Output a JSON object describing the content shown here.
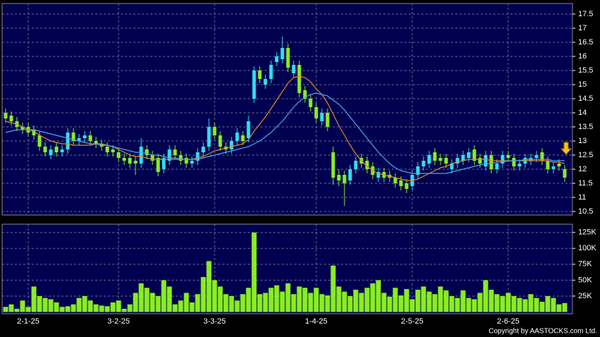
{
  "chart_data": [
    {
      "type": "candlestick",
      "ylim": [
        10.375,
        17.875
      ],
      "yticks": [
        10.5,
        11,
        11.5,
        12,
        12.5,
        13,
        13.5,
        14,
        14.5,
        15,
        15.5,
        16,
        16.5,
        17,
        17.5
      ],
      "grid": true,
      "up_color": "#33ddee",
      "down_color": "#88ee22",
      "open": [
        14.0,
        13.9,
        13.7,
        13.5,
        13.5,
        13.4,
        13.2,
        12.8,
        12.5,
        12.8,
        12.6,
        12.7,
        13.3,
        13.0,
        13.1,
        13.2,
        13.0,
        12.9,
        12.8,
        12.7,
        12.6,
        12.4,
        12.4,
        12.3,
        12.2,
        12.7,
        12.5,
        12.4,
        12.0,
        12.3,
        12.7,
        12.5,
        12.4,
        12.2,
        12.3,
        12.6,
        12.8,
        13.5,
        13.2,
        12.8,
        12.7,
        13.0,
        13.2,
        13.1,
        14.5,
        15.5,
        15.0,
        15.2,
        15.8,
        15.9,
        16.3,
        15.4,
        15.7,
        14.8,
        14.5,
        14.2,
        13.7,
        14.0,
        12.6,
        11.8,
        11.8,
        11.6,
        12.0,
        12.4,
        12.3,
        12.1,
        11.7,
        11.9,
        11.8,
        11.7,
        11.6,
        11.5,
        11.4,
        11.8,
        12.1,
        12.2,
        12.6,
        12.4,
        12.4,
        12.0,
        12.2,
        12.3,
        12.4,
        12.7,
        12.4,
        12.1,
        12.5,
        12.0,
        12.2,
        12.5,
        12.4,
        12.1,
        12.2,
        12.3,
        12.4,
        12.6,
        12.3,
        12.0,
        12.2,
        12.0
      ],
      "high": [
        14.15,
        14.05,
        13.85,
        13.65,
        13.65,
        13.55,
        13.35,
        12.95,
        12.85,
        12.95,
        12.85,
        13.45,
        13.45,
        13.25,
        13.35,
        13.35,
        13.15,
        13.05,
        12.95,
        12.85,
        12.75,
        12.55,
        12.55,
        12.45,
        13.1,
        12.85,
        12.65,
        12.55,
        12.55,
        12.85,
        12.85,
        12.65,
        12.55,
        12.45,
        12.75,
        12.95,
        13.8,
        13.65,
        13.35,
        12.95,
        13.15,
        13.45,
        13.35,
        13.9,
        15.65,
        15.65,
        15.35,
        15.85,
        16.15,
        16.7,
        16.45,
        15.85,
        15.85,
        14.95,
        14.65,
        14.35,
        14.15,
        14.15,
        12.8,
        12.0,
        11.95,
        12.15,
        12.45,
        12.55,
        12.45,
        12.25,
        12.05,
        12.05,
        11.95,
        11.85,
        11.75,
        11.65,
        11.95,
        12.25,
        12.45,
        12.65,
        12.75,
        12.55,
        12.55,
        12.35,
        12.55,
        12.65,
        12.75,
        12.85,
        12.55,
        12.65,
        12.65,
        12.35,
        12.65,
        12.65,
        12.55,
        12.35,
        12.55,
        12.55,
        12.65,
        12.75,
        12.45,
        12.25,
        12.35,
        12.15
      ],
      "low": [
        13.65,
        13.55,
        13.35,
        13.25,
        13.15,
        13.05,
        12.65,
        12.45,
        12.35,
        12.45,
        12.45,
        12.55,
        12.85,
        12.85,
        12.95,
        12.85,
        12.75,
        12.65,
        12.45,
        12.45,
        12.25,
        12.15,
        12.05,
        11.8,
        12.05,
        12.35,
        12.15,
        11.75,
        11.85,
        12.15,
        12.35,
        12.15,
        12.05,
        12.05,
        12.15,
        12.45,
        12.65,
        13.05,
        12.65,
        12.55,
        12.55,
        12.85,
        12.85,
        12.95,
        14.35,
        15.05,
        14.85,
        15.05,
        15.65,
        15.75,
        15.45,
        15.25,
        14.55,
        14.35,
        14.05,
        13.65,
        13.55,
        13.35,
        11.45,
        11.4,
        10.7,
        11.45,
        11.85,
        12.05,
        11.85,
        11.65,
        11.55,
        11.55,
        11.55,
        11.35,
        11.25,
        11.15,
        11.25,
        11.65,
        11.95,
        12.05,
        12.15,
        12.15,
        12.05,
        11.85,
        12.05,
        12.15,
        12.25,
        12.15,
        12.05,
        11.95,
        11.85,
        11.85,
        12.05,
        12.25,
        11.95,
        11.95,
        12.05,
        12.15,
        12.25,
        12.15,
        11.85,
        11.85,
        11.95,
        11.55
      ],
      "close": [
        13.8,
        13.7,
        13.5,
        13.4,
        13.3,
        13.2,
        12.8,
        12.6,
        12.7,
        12.6,
        12.7,
        13.3,
        13.0,
        13.1,
        13.2,
        13.0,
        12.9,
        12.8,
        12.6,
        12.6,
        12.4,
        12.3,
        12.2,
        12.2,
        12.8,
        12.5,
        12.3,
        11.9,
        12.4,
        12.7,
        12.5,
        12.3,
        12.2,
        12.3,
        12.6,
        12.8,
        13.5,
        13.2,
        12.8,
        12.7,
        13.0,
        13.3,
        13.0,
        13.7,
        15.5,
        15.2,
        15.2,
        15.7,
        16.0,
        16.3,
        15.6,
        15.7,
        14.7,
        14.5,
        14.2,
        13.8,
        14.0,
        13.5,
        11.7,
        11.6,
        11.5,
        12.0,
        12.3,
        12.2,
        12.0,
        11.8,
        11.9,
        11.7,
        11.7,
        11.5,
        11.4,
        11.3,
        11.8,
        12.1,
        12.3,
        12.5,
        12.3,
        12.3,
        12.2,
        12.2,
        12.4,
        12.5,
        12.6,
        12.3,
        12.2,
        12.5,
        12.0,
        12.2,
        12.5,
        12.4,
        12.1,
        12.2,
        12.4,
        12.4,
        12.5,
        12.3,
        12.0,
        12.1,
        12.1,
        11.7
      ],
      "lines": [
        {
          "color": "#e0882a",
          "values": [
            13.7,
            13.65,
            13.6,
            13.5,
            13.4,
            13.35,
            13.2,
            13.1,
            13.0,
            12.95,
            12.9,
            12.9,
            12.85,
            12.85,
            12.85,
            12.85,
            12.9,
            12.9,
            12.85,
            12.8,
            12.7,
            12.6,
            12.5,
            12.45,
            12.45,
            12.4,
            12.35,
            12.35,
            12.35,
            12.35,
            12.35,
            12.35,
            12.35,
            12.35,
            12.4,
            12.45,
            12.55,
            12.65,
            12.7,
            12.75,
            12.8,
            12.85,
            12.9,
            13.05,
            13.35,
            13.6,
            13.85,
            14.15,
            14.45,
            14.75,
            15.05,
            15.25,
            15.3,
            15.25,
            15.1,
            14.85,
            14.65,
            14.35,
            13.95,
            13.55,
            13.2,
            12.85,
            12.55,
            12.3,
            12.1,
            11.95,
            11.85,
            11.8,
            11.75,
            11.7,
            11.65,
            11.6,
            11.6,
            11.65,
            11.75,
            11.85,
            11.95,
            12.05,
            12.1,
            12.2,
            12.25,
            12.3,
            12.35,
            12.35,
            12.35,
            12.35,
            12.3,
            12.3,
            12.3,
            12.3,
            12.3,
            12.3,
            12.3,
            12.3,
            12.3,
            12.3,
            12.3,
            12.25,
            12.25,
            12.2
          ]
        },
        {
          "color": "#4aa8e8",
          "values": [
            13.3,
            13.35,
            13.4,
            13.4,
            13.4,
            13.4,
            13.35,
            13.3,
            13.25,
            13.2,
            13.15,
            13.1,
            13.05,
            13.0,
            12.95,
            12.9,
            12.9,
            12.85,
            12.85,
            12.8,
            12.75,
            12.7,
            12.65,
            12.6,
            12.6,
            12.55,
            12.5,
            12.5,
            12.45,
            12.4,
            12.4,
            12.35,
            12.35,
            12.35,
            12.35,
            12.4,
            12.45,
            12.5,
            12.55,
            12.6,
            12.65,
            12.7,
            12.75,
            12.8,
            12.9,
            13.0,
            13.15,
            13.3,
            13.5,
            13.7,
            13.95,
            14.2,
            14.4,
            14.55,
            14.65,
            14.7,
            14.65,
            14.6,
            14.45,
            14.3,
            14.1,
            13.85,
            13.6,
            13.35,
            13.1,
            12.85,
            12.6,
            12.4,
            12.2,
            12.05,
            11.95,
            11.9,
            11.85,
            11.85,
            11.85,
            11.85,
            11.85,
            11.85,
            11.85,
            11.9,
            11.95,
            12.0,
            12.05,
            12.1,
            12.15,
            12.2,
            12.2,
            12.25,
            12.25,
            12.3,
            12.3,
            12.3,
            12.35,
            12.35,
            12.35,
            12.35,
            12.35,
            12.3,
            12.3,
            12.3
          ]
        }
      ]
    },
    {
      "type": "bar",
      "ylim": [
        0,
        138000
      ],
      "yticks": [
        {
          "value": 25000,
          "label": "25K"
        },
        {
          "value": 50000,
          "label": "50K"
        },
        {
          "value": 75000,
          "label": "75K"
        },
        {
          "value": 100000,
          "label": "100K"
        },
        {
          "value": 125000,
          "label": "125K"
        }
      ],
      "grid": true,
      "color": "#88ee22",
      "categories": [
        null,
        null,
        null,
        null,
        "2-1-25",
        null,
        null,
        null,
        null,
        null,
        null,
        null,
        null,
        null,
        null,
        null,
        null,
        null,
        null,
        null,
        "3-2-25",
        null,
        null,
        null,
        null,
        null,
        null,
        null,
        null,
        null,
        null,
        null,
        null,
        null,
        null,
        null,
        null,
        "3-3-25",
        null,
        null,
        null,
        null,
        null,
        null,
        null,
        null,
        null,
        null,
        null,
        null,
        null,
        null,
        null,
        null,
        null,
        "1-4-25",
        null,
        null,
        null,
        null,
        null,
        null,
        null,
        null,
        null,
        null,
        null,
        null,
        null,
        null,
        null,
        null,
        "2-5-25",
        null,
        null,
        null,
        null,
        null,
        null,
        null,
        null,
        null,
        null,
        null,
        null,
        null,
        null,
        null,
        null,
        "2-6-25",
        null,
        null,
        null,
        null,
        null,
        null,
        null,
        null,
        null,
        null
      ],
      "values": [
        8000,
        12000,
        5000,
        18000,
        8000,
        40000,
        25000,
        22000,
        20000,
        15000,
        8000,
        9000,
        12000,
        22000,
        25000,
        18000,
        12000,
        10000,
        9000,
        15000,
        18000,
        5000,
        12000,
        30000,
        45000,
        38000,
        30000,
        25000,
        50000,
        40000,
        12000,
        18000,
        30000,
        15000,
        28000,
        55000,
        80000,
        50000,
        40000,
        28000,
        25000,
        18000,
        28000,
        38000,
        125000,
        28000,
        30000,
        38000,
        42000,
        32000,
        45000,
        28000,
        40000,
        38000,
        30000,
        38000,
        28000,
        26000,
        73000,
        40000,
        32000,
        25000,
        35000,
        30000,
        38000,
        45000,
        50000,
        30000,
        24000,
        38000,
        26000,
        36000,
        20000,
        35000,
        40000,
        32000,
        28000,
        40000,
        34000,
        25000,
        22000,
        34000,
        22000,
        20000,
        30000,
        50000,
        35000,
        28000,
        25000,
        30000,
        25000,
        22000,
        20000,
        28000,
        22000,
        16000,
        25000,
        22000,
        12000,
        14000
      ]
    }
  ],
  "footer": "Copyright by AASTOCKS.com Ltd."
}
